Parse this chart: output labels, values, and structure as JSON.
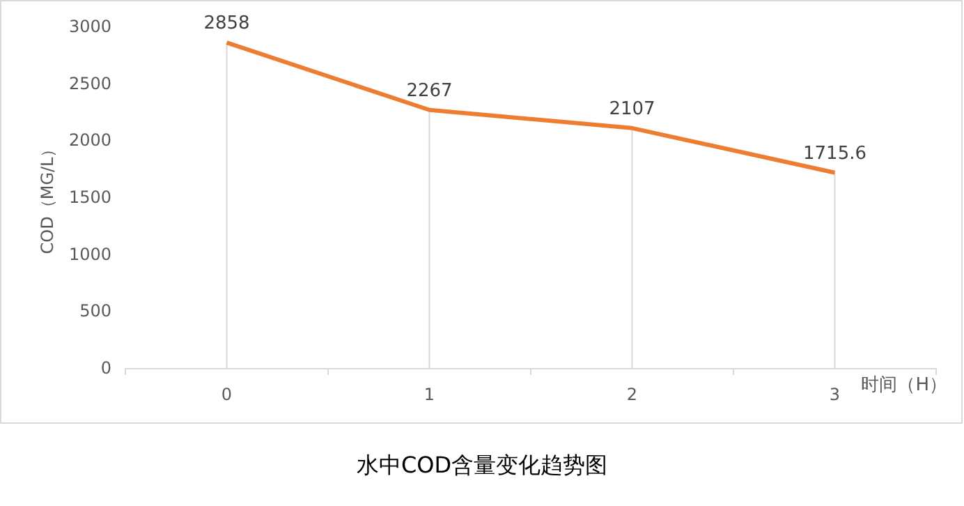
{
  "chart_data": {
    "type": "line",
    "title": "水中COD含量变化趋势图",
    "xlabel": "时间（H）",
    "ylabel": "COD（MG/L）",
    "categories": [
      "0",
      "1",
      "2",
      "3"
    ],
    "series": [
      {
        "color": "#ed7d31",
        "values": [
          2858,
          2267,
          2107,
          1715.6
        ]
      }
    ],
    "ylim": [
      0,
      3000
    ],
    "yticks": [
      0,
      500,
      1000,
      1500,
      2000,
      2500,
      3000
    ],
    "grid": "x",
    "data_labels": true,
    "line_style": "solid"
  }
}
